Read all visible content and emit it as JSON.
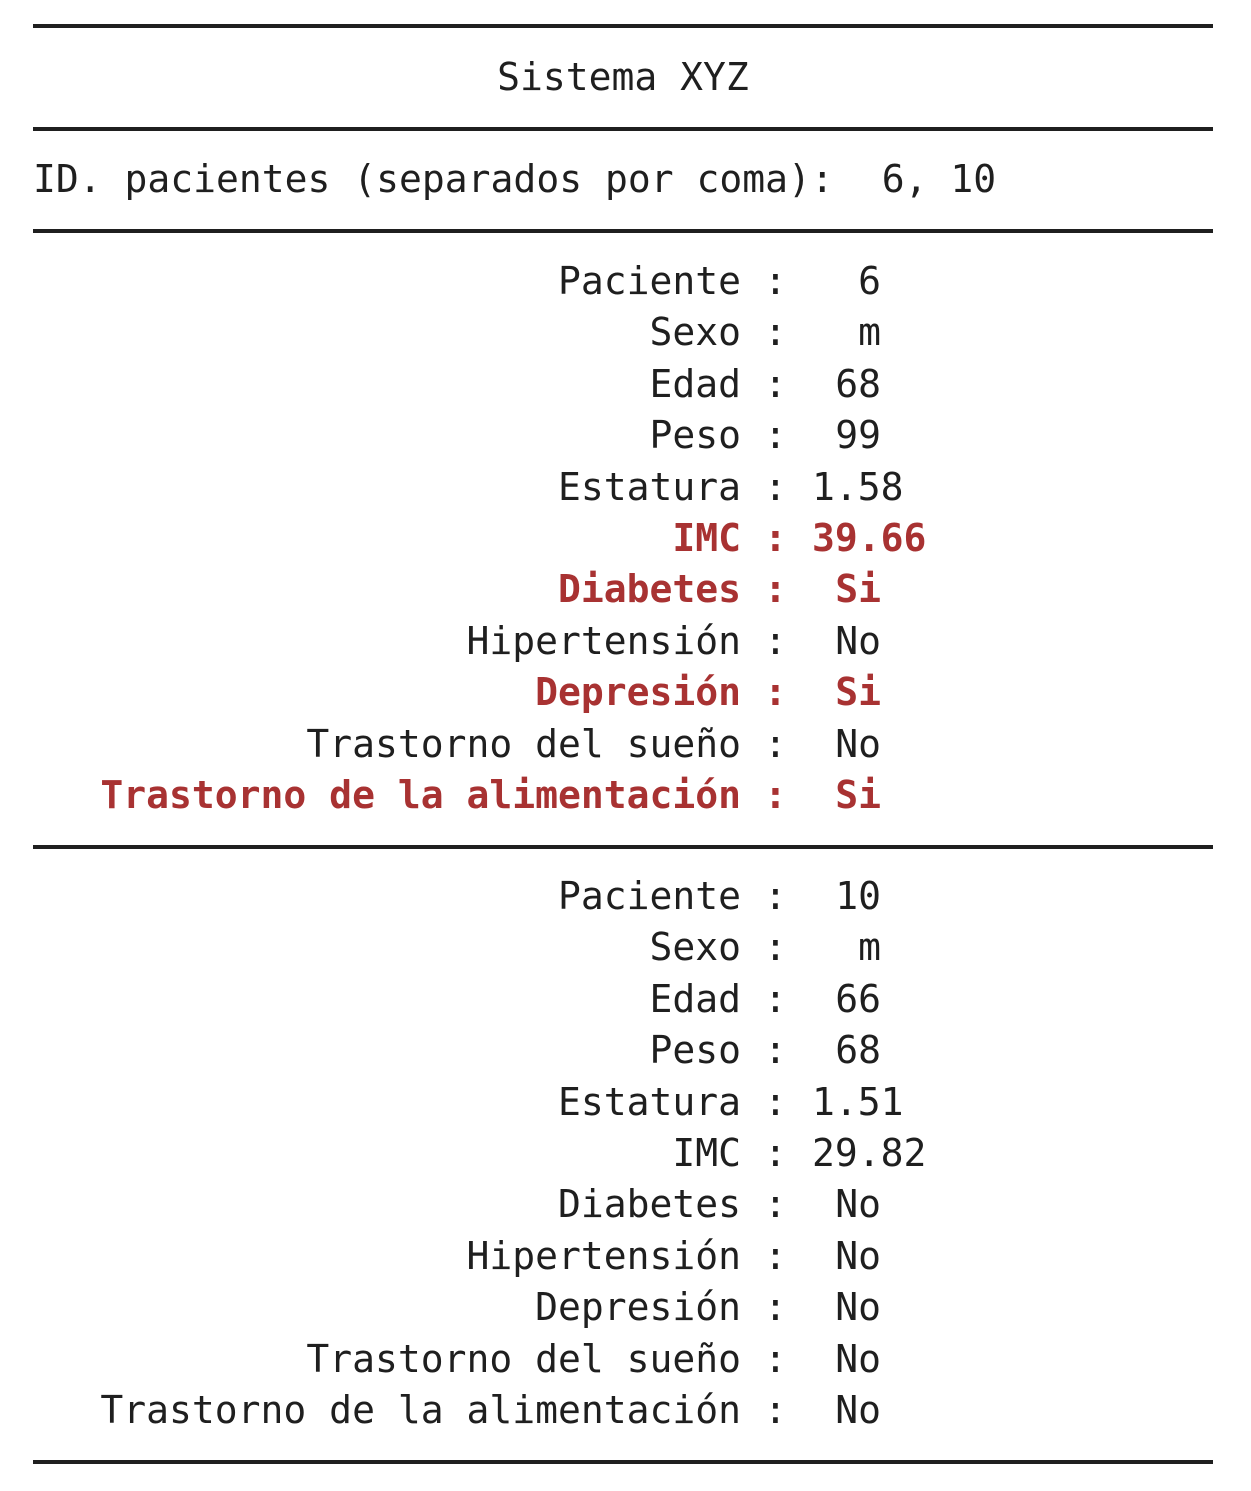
{
  "app": {
    "title": "Sistema XYZ"
  },
  "prompt": {
    "label": "ID. pacientes (separados por coma):",
    "value": "6, 10"
  },
  "colors": {
    "text": "#1f1f1f",
    "alert": "#a83232",
    "background": "#ffffff"
  },
  "patients": [
    {
      "fields": [
        {
          "label": "Paciente",
          "value": "6",
          "alert": false
        },
        {
          "label": "Sexo",
          "value": "m",
          "alert": false
        },
        {
          "label": "Edad",
          "value": "68",
          "alert": false
        },
        {
          "label": "Peso",
          "value": "99",
          "alert": false
        },
        {
          "label": "Estatura",
          "value": "1.58",
          "alert": false
        },
        {
          "label": "IMC",
          "value": "39.66",
          "alert": true
        },
        {
          "label": "Diabetes",
          "value": "Si",
          "alert": true
        },
        {
          "label": "Hipertensión",
          "value": "No",
          "alert": false
        },
        {
          "label": "Depresión",
          "value": "Si",
          "alert": true
        },
        {
          "label": "Trastorno del sueño",
          "value": "No",
          "alert": false
        },
        {
          "label": "Trastorno de la alimentación",
          "value": "Si",
          "alert": true
        }
      ]
    },
    {
      "fields": [
        {
          "label": "Paciente",
          "value": "10",
          "alert": false
        },
        {
          "label": "Sexo",
          "value": "m",
          "alert": false
        },
        {
          "label": "Edad",
          "value": "66",
          "alert": false
        },
        {
          "label": "Peso",
          "value": "68",
          "alert": false
        },
        {
          "label": "Estatura",
          "value": "1.51",
          "alert": false
        },
        {
          "label": "IMC",
          "value": "29.82",
          "alert": false
        },
        {
          "label": "Diabetes",
          "value": "No",
          "alert": false
        },
        {
          "label": "Hipertensión",
          "value": "No",
          "alert": false
        },
        {
          "label": "Depresión",
          "value": "No",
          "alert": false
        },
        {
          "label": "Trastorno del sueño",
          "value": "No",
          "alert": false
        },
        {
          "label": "Trastorno de la alimentación",
          "value": "No",
          "alert": false
        }
      ]
    }
  ],
  "separator": ":"
}
